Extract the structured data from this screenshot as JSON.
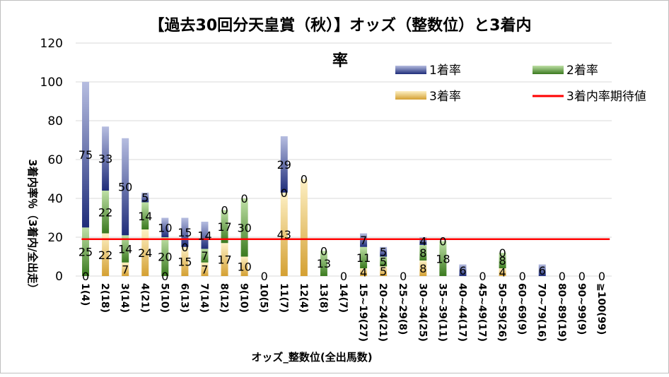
{
  "chart_data": {
    "type": "bar",
    "stacked": true,
    "title_line1": "【過去30回分天皇賞（秋）】オッズ（整数位）と3着内",
    "title_line2": "率",
    "xlabel": "オッズ_整数位(全出馬数)",
    "ylabel": "3着内率％（3着内/全出走）",
    "ylim": [
      0,
      120
    ],
    "yticks": [
      "0",
      "20",
      "40",
      "60",
      "80",
      "100",
      "120"
    ],
    "categories": [
      "1(4)",
      "2(18)",
      "3(14)",
      "4(21)",
      "5(10)",
      "6(13)",
      "7(14)",
      "8(12)",
      "9(10)",
      "10(5)",
      "11(7)",
      "12(4)",
      "13(8)",
      "14(7)",
      "15~19(27)",
      "20~24(21)",
      "25~29(8)",
      "30~34(25)",
      "35~39(11)",
      "40~44(17)",
      "45~49(17)",
      "50~59(26)",
      "60~69(9)",
      "70~79(16)",
      "80~89(19)",
      "90~99(9)",
      "≧100(99)"
    ],
    "series": [
      {
        "name": "3着率",
        "key": "s3",
        "values": [
          0,
          22,
          7,
          24,
          0,
          15,
          7,
          17,
          10,
          0,
          43,
          50,
          0,
          0,
          4,
          5,
          0,
          8,
          0,
          0,
          0,
          4,
          0,
          0,
          0,
          0,
          0
        ]
      },
      {
        "name": "2着率",
        "key": "s2",
        "values": [
          25,
          22,
          14,
          14,
          20,
          0,
          7,
          17,
          30,
          0,
          0,
          0,
          13,
          0,
          11,
          5,
          0,
          8,
          18,
          0,
          0,
          8,
          0,
          0,
          0,
          0,
          0
        ]
      },
      {
        "name": "1着率",
        "key": "s1",
        "values": [
          75,
          33,
          50,
          5,
          10,
          15,
          14,
          0,
          0,
          0,
          29,
          0,
          0,
          0,
          7,
          5,
          0,
          4,
          0,
          6,
          0,
          0,
          0,
          6,
          0,
          0,
          0
        ]
      }
    ],
    "value_labels": {
      "s3": [
        "0",
        "22",
        "7",
        "24",
        "0",
        "15",
        "7",
        "17",
        "10",
        "",
        "43",
        "",
        "",
        "",
        "4",
        "5",
        "",
        "8",
        "",
        "",
        "",
        "4",
        "",
        "",
        "",
        "",
        ""
      ],
      "s2": [
        "25",
        "22",
        "14",
        "14",
        "20",
        "0",
        "7",
        "17",
        "30",
        "",
        "0",
        "",
        "13",
        "",
        "11",
        "5",
        "",
        "8",
        "18",
        "",
        "",
        "8",
        "",
        "",
        "",
        "",
        ""
      ],
      "s1": [
        "75",
        "33",
        "50",
        "5",
        "10",
        "15",
        "14",
        "0",
        "0",
        "0",
        "29",
        "0",
        "0",
        "0",
        "7",
        "5",
        "0",
        "4",
        "0",
        "6",
        "0",
        "0",
        "0",
        "6",
        "0",
        "0",
        "0"
      ]
    },
    "expected_line": {
      "name": "3着内率期待値",
      "value": 19
    },
    "colors": {
      "s1": "#3d4ea6",
      "s2": "#5a9a3a",
      "s3": "#e1b14a",
      "line": "#ff0000",
      "grid": "#d9d9d9"
    },
    "legend": [
      "1着率",
      "2着率",
      "3着率",
      "3着内率期待値"
    ],
    "legend_position": "top-right"
  }
}
